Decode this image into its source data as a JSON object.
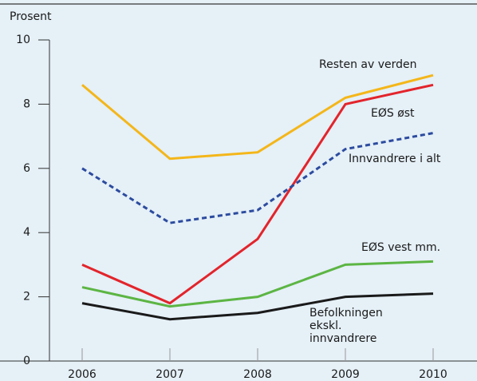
{
  "chart_data": {
    "type": "line",
    "y_label": "Prosent",
    "categories": [
      "2006",
      "2007",
      "2008",
      "2009",
      "2010"
    ],
    "ylim": [
      0,
      10
    ],
    "yticks": [
      0,
      2,
      4,
      6,
      8,
      10
    ],
    "series": [
      {
        "name": "Resten av verden",
        "color": "#f4b619",
        "style": "solid",
        "values": [
          8.6,
          6.3,
          6.5,
          8.2,
          8.9
        ]
      },
      {
        "name": "EØS øst",
        "color": "#e3242b",
        "style": "solid",
        "values": [
          3.0,
          1.8,
          3.8,
          8.0,
          8.6
        ]
      },
      {
        "name": "Innvandrere i alt",
        "color": "#2c4b9f",
        "style": "dashed",
        "values": [
          6.0,
          4.3,
          4.7,
          6.6,
          7.1
        ]
      },
      {
        "name": "EØS vest mm.",
        "color": "#5cb543",
        "style": "solid",
        "values": [
          2.3,
          1.7,
          2.0,
          3.0,
          3.1
        ]
      },
      {
        "name": "Befolkningen ekskl. innvandrere",
        "color": "#1a1a1a",
        "style": "solid",
        "values": [
          1.8,
          1.3,
          1.5,
          2.0,
          2.1
        ]
      }
    ]
  }
}
